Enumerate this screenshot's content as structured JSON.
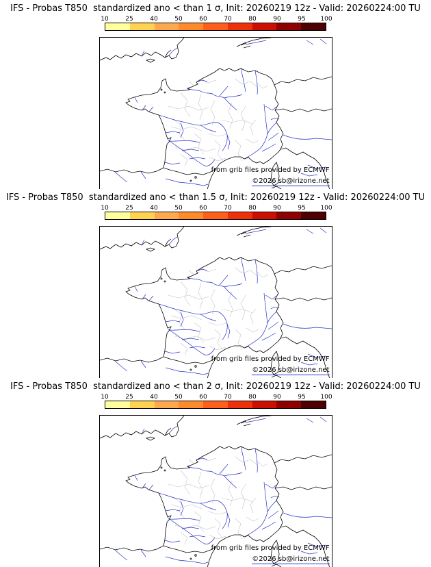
{
  "panels": [
    {
      "title": "IFS - Probas T850  standardized ano < than 1 σ, Init: 20260219 12z - Valid: 20260224:00 TU"
    },
    {
      "title": "IFS - Probas T850  standardized ano < than 1.5 σ, Init: 20260219 12z - Valid: 20260224:00 TU"
    },
    {
      "title": "IFS - Probas T850  standardized ano < than 2 σ, Init: 20260219 12z - Valid: 20260224:00 TU"
    }
  ],
  "colorbar": {
    "ticks": [
      "10",
      "25",
      "40",
      "50",
      "60",
      "70",
      "80",
      "90",
      "95",
      "100"
    ],
    "segment_colors": [
      "#ffff9e",
      "#ffd24f",
      "#ffa94f",
      "#ff8a2a",
      "#ff5f1a",
      "#f03008",
      "#cc0f00",
      "#8f0000",
      "#4d0000"
    ]
  },
  "attribution": {
    "line1": "from grib files provided by ECMWF",
    "line2": "©2026 sb@irizone.net"
  },
  "map": {
    "coast_color": "#000000",
    "river_color": "#2633c8",
    "department_border_color": "#c4c4c4"
  }
}
